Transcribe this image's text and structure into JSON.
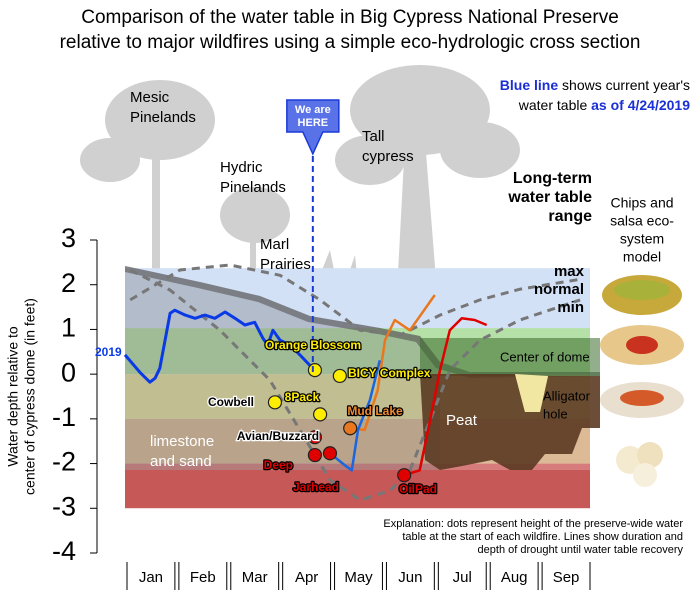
{
  "chart_data": {
    "type": "line",
    "title": [
      "Comparison of the water table in Big Cypress National Preserve",
      "relative to major wildfires using a simple eco-hydrologic cross section"
    ],
    "note": [
      [
        "Blue line",
        " shows current year's"
      ],
      [
        "water table ",
        "as of 4/24/2019"
      ]
    ],
    "y_label": [
      "Water depth relative to",
      "center of cypress dome (in feet)"
    ],
    "categories": [
      "Jan",
      "Feb",
      "Mar",
      "Apr",
      "May",
      "Jun",
      "Jul",
      "Aug",
      "Sep"
    ],
    "xlim": [
      0,
      9
    ],
    "ylim": [
      -4,
      3
    ],
    "yticks": [
      3,
      2,
      1,
      0,
      -1,
      -2,
      -3,
      -4
    ],
    "ranges": [
      {
        "from": 2.37,
        "to": 1.03,
        "color": "#d3e1f7"
      },
      {
        "from": 1.03,
        "to": 0,
        "color": "#b5e0a8"
      },
      {
        "from": 0,
        "to": -1,
        "color": "#e8e4a0"
      },
      {
        "from": -1,
        "to": -2,
        "color": "#dcba96"
      },
      {
        "from": -2,
        "to": -3,
        "color": "#d77c7c"
      }
    ],
    "range_title": [
      "Long-term",
      "water table",
      "range"
    ],
    "range_labels": [
      "max",
      "normal",
      "min"
    ],
    "series": [
      {
        "name": "2019",
        "color": "#0a3ae6",
        "x": [
          0,
          0.29,
          0.48,
          0.58,
          0.67,
          0.87,
          0.96,
          1.16,
          1.35,
          1.54,
          1.73,
          1.93,
          2.12,
          2.31,
          2.5,
          2.66,
          2.75,
          2.85,
          2.99,
          3.18,
          3.37,
          3.56,
          3.66
        ],
        "values": [
          0.43,
          0.04,
          -0.18,
          -0.09,
          0.13,
          1.36,
          1.43,
          1.32,
          1.25,
          1.32,
          1.25,
          1.39,
          1.25,
          1.1,
          1.16,
          0.8,
          0.65,
          0.98,
          0.76,
          0.65,
          0.43,
          0.2,
          0.04
        ]
      }
    ],
    "historic": [
      {
        "color": "#777777",
        "x": [
          0.1,
          1.06,
          2.02,
          2.99,
          3.76,
          4.53,
          5.3,
          6.07,
          6.84,
          7.61,
          8.77
        ],
        "values": [
          1.66,
          2.33,
          2.44,
          2.21,
          1.66,
          0.98,
          0.87,
          1.32,
          1.66,
          1.9,
          2.12
        ]
      },
      {
        "color": "#777777",
        "x": [
          0.1,
          0.87,
          1.83,
          2.79,
          3.37,
          3.95,
          4.53,
          5.11,
          5.49,
          5.88,
          6.26,
          6.84,
          7.61,
          8.77
        ],
        "values": [
          2.33,
          1.88,
          0.98,
          -0.13,
          -1.25,
          -2.37,
          -2.82,
          -2.6,
          -2.15,
          -1.03,
          0.09,
          0.76,
          1.21,
          1.66
        ]
      }
    ],
    "fires": [
      {
        "name": "Orange Blossom",
        "color": "#ffee00",
        "x": 3.66,
        "value": 0.09
      },
      {
        "name": "BICY Complex",
        "color": "#ffee00",
        "x": 4.14,
        "value": -0.04
      },
      {
        "name": "Cowbell",
        "color": "#ffee00",
        "x": 2.89,
        "value": -0.63
      },
      {
        "name": "8Pack",
        "color": "#ffee00",
        "x": 3.76,
        "value": -0.9
      },
      {
        "name": "Mud Lake",
        "color": "#e8771e",
        "x": 4.34,
        "value": -1.21,
        "line": {
          "x": [
            4.34,
            4.62,
            4.87,
            5.01,
            5.2,
            5.49,
            5.97
          ],
          "values": [
            -1.21,
            -1.25,
            -0.36,
            0.76,
            1.21,
            0.98,
            1.77
          ]
        }
      },
      {
        "name": "Avian/Buzzard",
        "color": "#e00000",
        "x": 3.66,
        "value": -1.41
      },
      {
        "name": "Deep",
        "color": "#e00000",
        "x": 3.66,
        "value": -1.81
      },
      {
        "name": "Jarhead",
        "color": "#e00000",
        "x": 3.95,
        "value": -1.77,
        "line": {
          "color": "#1a66e0",
          "x": [
            3.95,
            4.24,
            4.37,
            4.49,
            4.72,
            4.91
          ],
          "values": [
            -1.77,
            -2.04,
            -2.15,
            -1.25,
            -0.58,
            0.31
          ]
        }
      },
      {
        "name": "OilPad",
        "color": "#e00000",
        "x": 5.38,
        "value": -2.26,
        "line": {
          "x": [
            5.38,
            5.68,
            5.88,
            6.07,
            6.26,
            6.49,
            6.74,
            6.97
          ],
          "values": [
            -2.26,
            -2.15,
            -1.03,
            0.09,
            0.98,
            1.25,
            1.21,
            1.1
          ]
        }
      }
    ],
    "marker": {
      "label": [
        "We are",
        "HERE"
      ],
      "x": 3.62
    },
    "habitats": {
      "mesic": [
        "Mesic",
        "Pinelands"
      ],
      "hydric": [
        "Hydric",
        "Pinelands"
      ],
      "marl": [
        "Marl",
        "Prairies"
      ],
      "cypress": [
        "Tall",
        "cypress"
      ],
      "dome": "Center of dome",
      "hole": [
        "Alligator",
        "hole"
      ],
      "peat": "Peat",
      "limestone": [
        "limestone",
        "and sand"
      ]
    },
    "model": [
      "Chips and",
      "salsa eco-",
      "system",
      "model"
    ],
    "explanation": [
      "Explanation: dots represent height of the preserve-wide water",
      "table at the start of each wildfire. Lines show duration and",
      "depth of drought until water table recovery"
    ]
  }
}
